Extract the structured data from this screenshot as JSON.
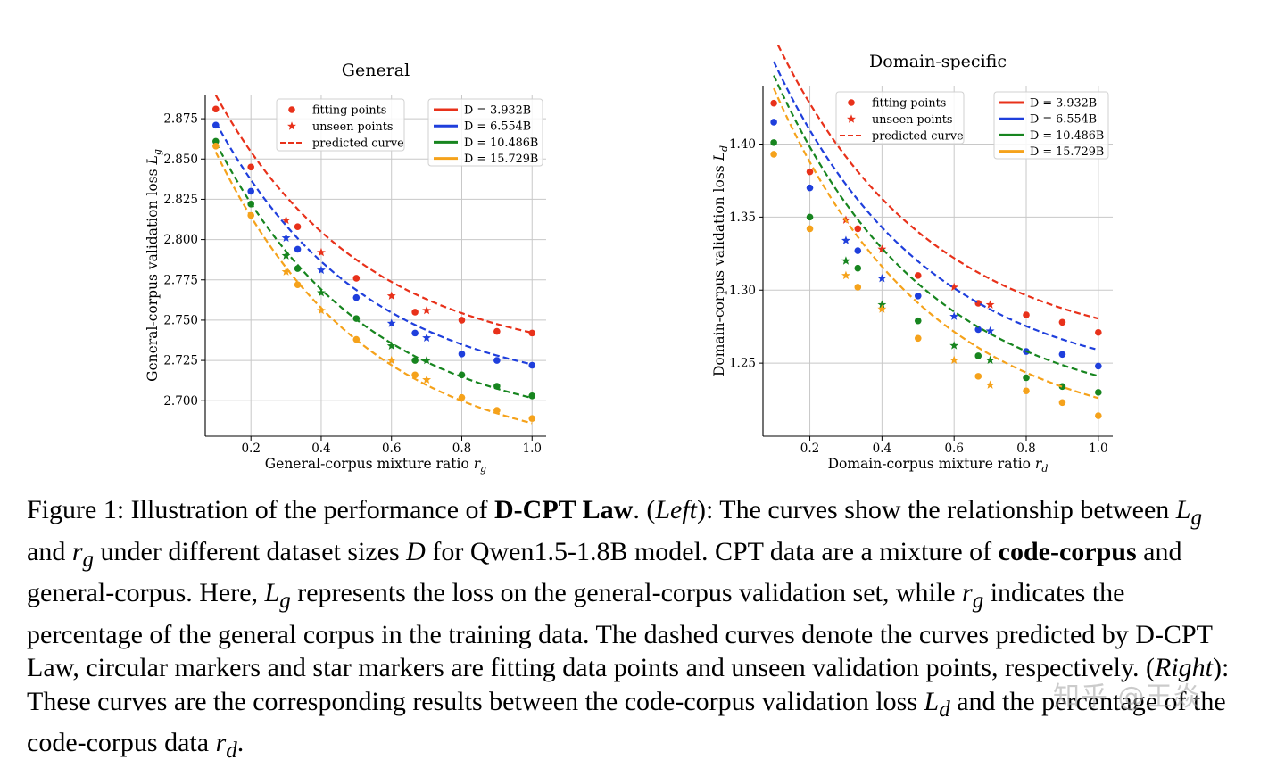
{
  "chart_data": [
    {
      "type": "scatter",
      "title": "General",
      "xlabel": "General-corpus mixture ratio",
      "xlabel_sym": "r",
      "xlabel_sub": "g",
      "ylabel": "General-corpus validation loss",
      "ylabel_sym": "L",
      "ylabel_sub": "g",
      "xlim": [
        0.07,
        1.04
      ],
      "ylim": [
        2.678,
        2.89
      ],
      "xticks": [
        0.2,
        0.4,
        0.6,
        0.8,
        1.0
      ],
      "xtick_labels": [
        "0.2",
        "0.4",
        "0.6",
        "0.8",
        "1.0"
      ],
      "yticks": [
        2.7,
        2.725,
        2.75,
        2.775,
        2.8,
        2.825,
        2.85,
        2.875
      ],
      "ytick_labels": [
        "2.700",
        "2.725",
        "2.750",
        "2.775",
        "2.800",
        "2.825",
        "2.850",
        "2.875"
      ],
      "grid": true,
      "marker_legend": {
        "position": "top-center",
        "entries": [
          {
            "marker": "circle",
            "label": "fitting points"
          },
          {
            "marker": "star",
            "label": "unseen points"
          },
          {
            "marker": "dashed",
            "label": "predicted curve"
          }
        ]
      },
      "series_legend_position": "top-right",
      "series": [
        {
          "name": "D = 3.932B",
          "color": "#e8311a",
          "fit_x": [
            0.1,
            0.2,
            0.333,
            0.5,
            0.667,
            0.8,
            0.9,
            1.0
          ],
          "fit_y": [
            2.881,
            2.845,
            2.808,
            2.776,
            2.755,
            2.75,
            2.743,
            2.742
          ],
          "unseen_x": [
            0.3,
            0.4,
            0.6,
            0.7
          ],
          "unseen_y": [
            2.812,
            2.792,
            2.765,
            2.756
          ],
          "curve": {
            "a": 2.722,
            "b": 0.212,
            "k": 2.35
          }
        },
        {
          "name": "D = 6.554B",
          "color": "#1f3fdc",
          "fit_x": [
            0.1,
            0.2,
            0.333,
            0.5,
            0.667,
            0.8,
            0.9,
            1.0
          ],
          "fit_y": [
            2.871,
            2.83,
            2.794,
            2.764,
            2.742,
            2.729,
            2.725,
            2.722
          ],
          "unseen_x": [
            0.3,
            0.4,
            0.6,
            0.7
          ],
          "unseen_y": [
            2.801,
            2.781,
            2.748,
            2.739
          ],
          "curve": {
            "a": 2.702,
            "b": 0.216,
            "k": 2.35
          }
        },
        {
          "name": "D = 10.486B",
          "color": "#17851f",
          "fit_x": [
            0.1,
            0.2,
            0.333,
            0.5,
            0.667,
            0.8,
            0.9,
            1.0
          ],
          "fit_y": [
            2.861,
            2.822,
            2.782,
            2.751,
            2.725,
            2.716,
            2.709,
            2.703
          ],
          "unseen_x": [
            0.3,
            0.4,
            0.6,
            0.7
          ],
          "unseen_y": [
            2.79,
            2.767,
            2.734,
            2.725
          ],
          "curve": {
            "a": 2.68,
            "b": 0.228,
            "k": 2.35
          }
        },
        {
          "name": "D = 15.729B",
          "color": "#f5a21b",
          "fit_x": [
            0.1,
            0.2,
            0.333,
            0.5,
            0.667,
            0.8,
            0.9,
            1.0
          ],
          "fit_y": [
            2.858,
            2.815,
            2.772,
            2.738,
            2.716,
            2.702,
            2.694,
            2.689
          ],
          "unseen_x": [
            0.3,
            0.4,
            0.6,
            0.7
          ],
          "unseen_y": [
            2.78,
            2.756,
            2.725,
            2.713
          ],
          "curve": {
            "a": 2.663,
            "b": 0.242,
            "k": 2.35
          }
        }
      ]
    },
    {
      "type": "scatter",
      "title": "Domain-specific",
      "xlabel": "Domain-corpus mixture ratio",
      "xlabel_sym": "r",
      "xlabel_sub": "d",
      "ylabel": "Domain-corpus validation loss",
      "ylabel_sym": "L",
      "ylabel_sub": "d",
      "xlim": [
        0.07,
        1.04
      ],
      "ylim": [
        1.2,
        1.44
      ],
      "xticks": [
        0.2,
        0.4,
        0.6,
        0.8,
        1.0
      ],
      "xtick_labels": [
        "0.2",
        "0.4",
        "0.6",
        "0.8",
        "1.0"
      ],
      "yticks": [
        1.25,
        1.3,
        1.35,
        1.4
      ],
      "ytick_labels": [
        "1.25",
        "1.30",
        "1.35",
        "1.40"
      ],
      "grid": true,
      "marker_legend": {
        "position": "top-center",
        "entries": [
          {
            "marker": "circle",
            "label": "fitting points"
          },
          {
            "marker": "star",
            "label": "unseen points"
          },
          {
            "marker": "dashed",
            "label": "predicted curve"
          }
        ]
      },
      "series_legend_position": "top-right",
      "series": [
        {
          "name": "D = 3.932B",
          "color": "#e8311a",
          "fit_x": [
            0.1,
            0.2,
            0.333,
            0.5,
            0.667,
            0.8,
            0.9,
            1.0
          ],
          "fit_y": [
            1.428,
            1.381,
            1.342,
            1.31,
            1.291,
            1.283,
            1.278,
            1.271
          ],
          "unseen_x": [
            0.3,
            0.4,
            0.6,
            0.7
          ],
          "unseen_y": [
            1.348,
            1.328,
            1.302,
            1.29
          ],
          "curve": {
            "a": 1.254,
            "b": 0.278,
            "k": 2.35
          }
        },
        {
          "name": "D = 6.554B",
          "color": "#1f3fdc",
          "fit_x": [
            0.1,
            0.2,
            0.333,
            0.5,
            0.667,
            0.8,
            0.9,
            1.0
          ],
          "fit_y": [
            1.415,
            1.37,
            1.327,
            1.296,
            1.273,
            1.258,
            1.256,
            1.248
          ],
          "unseen_x": [
            0.3,
            0.4,
            0.6,
            0.7
          ],
          "unseen_y": [
            1.334,
            1.308,
            1.282,
            1.272
          ],
          "curve": {
            "a": 1.232,
            "b": 0.284,
            "k": 2.35
          }
        },
        {
          "name": "D = 10.486B",
          "color": "#17851f",
          "fit_x": [
            0.1,
            0.2,
            0.333,
            0.5,
            0.667,
            0.8,
            0.9,
            1.0
          ],
          "fit_y": [
            1.401,
            1.35,
            1.315,
            1.279,
            1.255,
            1.24,
            1.234,
            1.23
          ],
          "unseen_x": [
            0.3,
            0.4,
            0.6,
            0.7
          ],
          "unseen_y": [
            1.32,
            1.29,
            1.262,
            1.252
          ],
          "curve": {
            "a": 1.213,
            "b": 0.296,
            "k": 2.35
          }
        },
        {
          "name": "D = 15.729B",
          "color": "#f5a21b",
          "fit_x": [
            0.1,
            0.2,
            0.333,
            0.5,
            0.667,
            0.8,
            0.9,
            1.0
          ],
          "fit_y": [
            1.393,
            1.342,
            1.302,
            1.267,
            1.241,
            1.231,
            1.223,
            1.214
          ],
          "unseen_x": [
            0.3,
            0.4,
            0.6,
            0.7
          ],
          "unseen_y": [
            1.31,
            1.287,
            1.252,
            1.235
          ],
          "curve": {
            "a": 1.197,
            "b": 0.305,
            "k": 2.35
          }
        }
      ]
    }
  ],
  "caption": {
    "figure_label": "Figure 1: Illustration of the performance of ",
    "law_name": "D-CPT Law",
    "left_tag": "Left",
    "seg1": ": The curves show the relationship between ",
    "sym_Lg": "L",
    "sub_g": "g",
    "and": " and ",
    "sym_rg": "r",
    "seg2": " under different dataset sizes ",
    "sym_D": "D",
    "seg3": " for Qwen1.5-1.8B model. CPT data are a mixture of ",
    "code_corpus": "code-corpus",
    "seg4": " and general-corpus. Here, ",
    "seg5": " represents the loss on the general-corpus validation set, while ",
    "seg6": " indicates the percentage of the general corpus in the training data. The dashed curves denote the curves predicted by D-CPT Law, circular markers and star markers are fitting data points and unseen validation points, respectively. (",
    "right_tag": "Right",
    "seg7": "): These curves are the corresponding results between the code-corpus validation loss ",
    "sub_d": "d",
    "seg8": " and the percentage of the code-corpus data ",
    "seg9": "."
  },
  "watermark": "知乎 @王焱"
}
